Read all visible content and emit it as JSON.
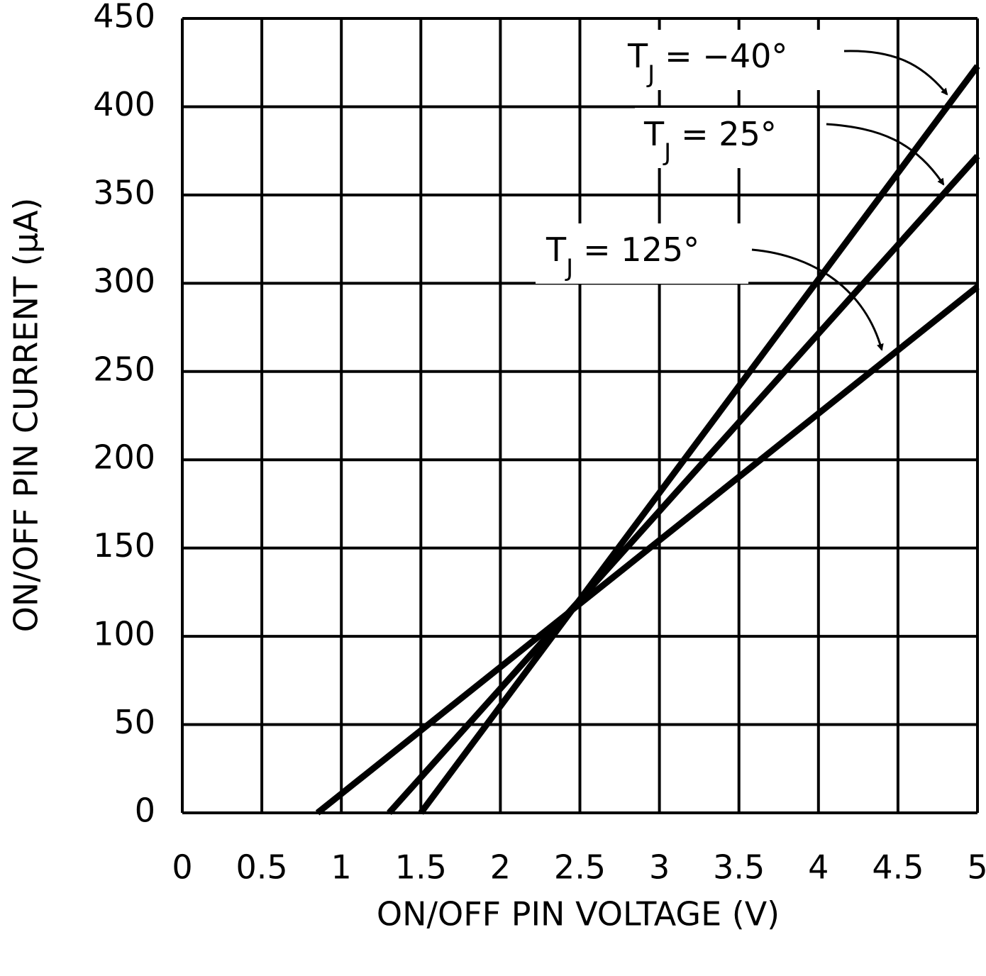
{
  "chart_data": {
    "type": "line",
    "xlabel": "ON/OFF PIN VOLTAGE (V)",
    "ylabel": "ON/OFF PIN CURRENT (μA)",
    "xlim": [
      0,
      5
    ],
    "xticks": [
      0,
      0.5,
      1,
      1.5,
      2,
      2.5,
      3,
      3.5,
      4,
      4.5,
      5
    ],
    "ylim": [
      0,
      450
    ],
    "yticks": [
      0,
      50,
      100,
      150,
      200,
      250,
      300,
      350,
      400,
      450
    ],
    "grid": true,
    "series": [
      {
        "color": "#000000",
        "x": [
          1.5,
          5
        ],
        "values": [
          0,
          423
        ]
      },
      {
        "color": "#000000",
        "x": [
          1.3,
          5
        ],
        "values": [
          0,
          372
        ]
      },
      {
        "color": "#000000",
        "x": [
          0.85,
          5
        ],
        "values": [
          0,
          298
        ]
      }
    ],
    "annotations": [
      {
        "text": "T",
        "subscript": "J",
        "suffix": "= −40°"
      },
      {
        "text": "T",
        "subscript": "J",
        "suffix": "= 25°"
      },
      {
        "text": "T",
        "subscript": "J",
        "suffix": "= 125°"
      }
    ]
  }
}
